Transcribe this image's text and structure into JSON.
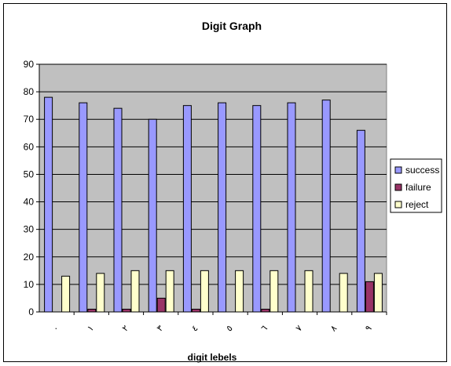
{
  "chart_data": {
    "type": "bar",
    "title": "Digit Graph",
    "xlabel": "digit lebels",
    "ylabel": "",
    "ylim": [
      0,
      90
    ],
    "yticks": [
      0,
      10,
      20,
      30,
      40,
      50,
      60,
      70,
      80,
      90
    ],
    "grid": true,
    "legend_position": "right",
    "categories": [
      "٠",
      "١",
      "٢",
      "٣",
      "٤",
      "٥",
      "٦",
      "٧",
      "٨",
      "٩"
    ],
    "series": [
      {
        "name": "success",
        "color": "#9999ff",
        "values": [
          78,
          76,
          74,
          70,
          75,
          76,
          75,
          76,
          77,
          66
        ]
      },
      {
        "name": "failure",
        "color": "#993366",
        "values": [
          0,
          1,
          1,
          5,
          1,
          0,
          1,
          0,
          0,
          11
        ]
      },
      {
        "name": "reject",
        "color": "#ffffcc",
        "values": [
          13,
          14,
          15,
          15,
          15,
          15,
          15,
          15,
          14,
          14
        ]
      }
    ],
    "plot_background": "#c0c0c0"
  }
}
